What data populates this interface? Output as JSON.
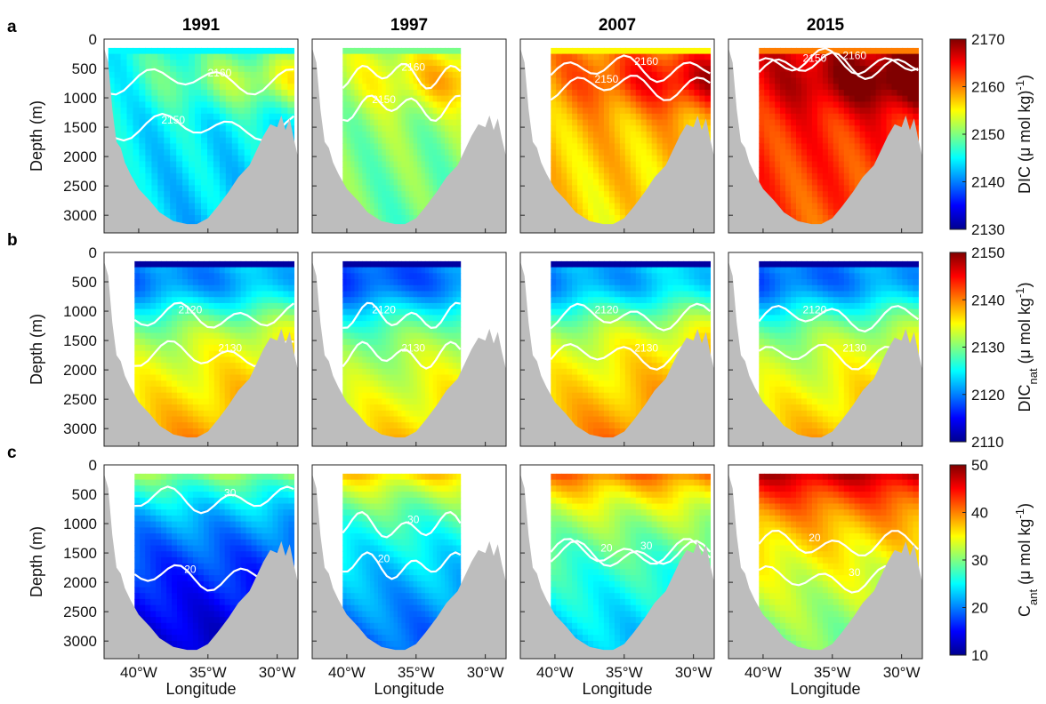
{
  "chart_data": {
    "type": "heatmap",
    "layout": "3 rows x 4 columns of ocean section contour plots",
    "columns": [
      "1991",
      "1997",
      "2007",
      "2015"
    ],
    "x_axis": {
      "label": "Longitude",
      "range": [
        42.5,
        28.5
      ],
      "ticks": [
        40,
        35,
        30
      ],
      "tick_labels": [
        "40°W",
        "35°W",
        "30°W"
      ]
    },
    "y_axis": {
      "label": "Depth (m)",
      "range": [
        0,
        3300
      ],
      "inverted": true,
      "ticks": [
        0,
        500,
        1000,
        1500,
        2000,
        2500,
        3000
      ],
      "tick_labels": [
        "0",
        "500",
        "1000",
        "1500",
        "2000",
        "2500",
        "3000"
      ]
    },
    "rows": [
      {
        "letter": "a",
        "colorbar": {
          "label_main": "DIC (μ mol kg",
          "label_sub": "",
          "label_tail": ")",
          "label_sup": "-1",
          "range": [
            2130,
            2170
          ],
          "ticks": [
            2130,
            2140,
            2150,
            2160,
            2170
          ],
          "tick_labels": [
            "2130",
            "2140",
            "2150",
            "2160",
            "2170"
          ]
        },
        "contour_labels": [
          "2150",
          "2160"
        ],
        "mean_by_year": [
          2146,
          2152,
          2159,
          2165
        ]
      },
      {
        "letter": "b",
        "colorbar": {
          "label_main": "DIC",
          "label_sub": "nat",
          "label_tail": "  (μ mol kg",
          "label_sup": "-1",
          "label_end": ")",
          "range": [
            2110,
            2150
          ],
          "ticks": [
            2110,
            2120,
            2130,
            2140,
            2150
          ],
          "tick_labels": [
            "2110",
            "2120",
            "2130",
            "2140",
            "2150"
          ]
        },
        "contour_labels": [
          "2120",
          "2130"
        ],
        "mean_by_year": [
          2128,
          2126,
          2129,
          2127
        ]
      },
      {
        "letter": "c",
        "colorbar": {
          "label_main": "C",
          "label_sub": "ant",
          "label_tail": "  (μ mol kg",
          "label_sup": "-1",
          "label_end": ")",
          "range": [
            10,
            50
          ],
          "ticks": [
            10,
            20,
            30,
            40,
            50
          ],
          "tick_labels": [
            "10",
            "20",
            "30",
            "40",
            "50"
          ]
        },
        "contour_labels": [
          "20",
          "30"
        ],
        "mean_by_year": [
          21,
          27,
          31,
          38
        ]
      }
    ],
    "colormap": [
      "#00008f",
      "#0000ff",
      "#0080ff",
      "#00ffff",
      "#80ff80",
      "#ffff00",
      "#ff8000",
      "#ff0000",
      "#800000"
    ],
    "bathymetry_color": "#bdbdbd"
  }
}
